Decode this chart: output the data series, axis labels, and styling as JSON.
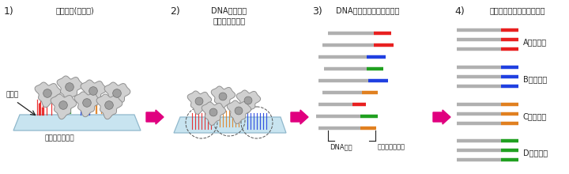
{
  "bg_color": "#ffffff",
  "step_labels": [
    "1)",
    "2)",
    "3)",
    "4)"
  ],
  "arrow_color": "#e0007f",
  "section1": {
    "title": "組織切片(細胞塡)",
    "subtitle": "載せる",
    "bottom_label": "バーコード基板"
  },
  "section2": {
    "title_line1": "DNA分子への",
    "title_line2": "バーコード付加"
  },
  "section3": {
    "title": "DNA試料の回収と配列解析",
    "label_dna": "DNA配列",
    "label_barcode": "バーコード配列"
  },
  "section4": {
    "title": "バーコード配列による分類",
    "labels": [
      "A区画由来",
      "B区画由来",
      "C区画由来",
      "D区画由来"
    ],
    "bar_colors": [
      "#e82020",
      "#2040e0",
      "#e08020",
      "#20a020"
    ]
  },
  "colors": {
    "red": "#e82020",
    "blue": "#2040e0",
    "orange": "#e08020",
    "green": "#20a020",
    "gray": "#b0b0b0",
    "cell_body": "#d0d0d0",
    "cell_outline": "#909090",
    "nucleus": "#909090",
    "platform_fill": "#c8e4f0",
    "platform_edge": "#90b8cc",
    "dark": "#222222"
  }
}
